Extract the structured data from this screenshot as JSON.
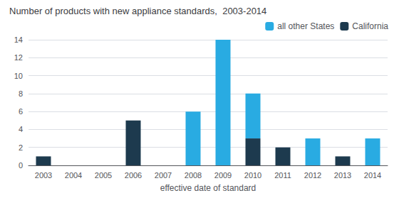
{
  "chart_data": {
    "type": "bar",
    "stacked": true,
    "title": "Number of products with new appliance standards,  2003-2014",
    "xlabel": "effective date of standard",
    "categories": [
      "2003",
      "2004",
      "2005",
      "2006",
      "2007",
      "2008",
      "2009",
      "2010",
      "2011",
      "2012",
      "2013",
      "2014"
    ],
    "series": [
      {
        "name": "California",
        "color": "#1d3a4e",
        "values": [
          1,
          0,
          0,
          5,
          0,
          0,
          0,
          3,
          2,
          0,
          1,
          0
        ]
      },
      {
        "name": "all other States",
        "color": "#29abe2",
        "values": [
          0,
          0,
          0,
          0,
          0,
          6,
          14,
          5,
          0,
          3,
          0,
          3
        ]
      }
    ],
    "ylim": [
      0,
      14
    ],
    "yticks": [
      0,
      2,
      4,
      6,
      8,
      10,
      12,
      14
    ],
    "grid": true,
    "legend": "upper right"
  }
}
